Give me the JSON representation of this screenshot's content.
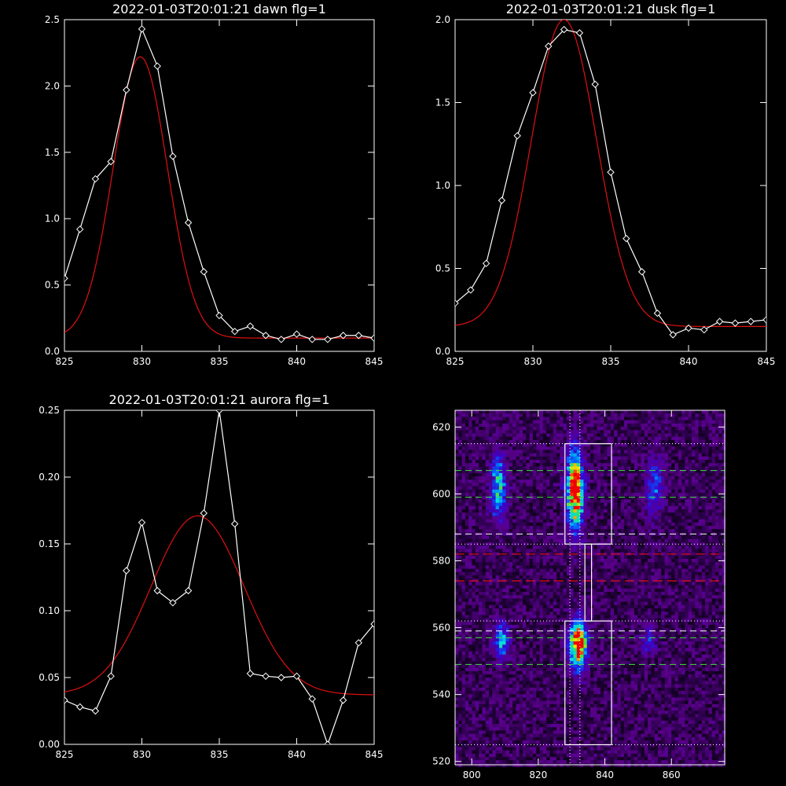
{
  "chart_data": [
    {
      "type": "line",
      "title": "2022-01-03T20:01:21 dawn flg=1",
      "xlim": [
        825,
        845
      ],
      "ylim": [
        0,
        2.5
      ],
      "xticks": [
        825,
        830,
        835,
        840,
        845
      ],
      "yticks": [
        0.0,
        0.5,
        1.0,
        1.5,
        2.0,
        2.5
      ],
      "ytick_labels": [
        "0.0",
        "0.5",
        "1.0",
        "1.5",
        "2.0",
        "2.5"
      ],
      "series": [
        {
          "color": "#ffffff",
          "markers": "diamond",
          "x": [
            825,
            826,
            827,
            828,
            829,
            830,
            831,
            832,
            833,
            834,
            835,
            836,
            837,
            838,
            839,
            840,
            841,
            842,
            843,
            844,
            845
          ],
          "y": [
            0.55,
            0.92,
            1.3,
            1.43,
            1.97,
            2.43,
            2.15,
            1.47,
            0.97,
            0.6,
            0.27,
            0.15,
            0.19,
            0.12,
            0.09,
            0.13,
            0.09,
            0.09,
            0.12,
            0.12,
            0.1
          ]
        },
        {
          "color": "#e01010",
          "fit": "gaussian",
          "amplitude": 2.12,
          "center": 829.9,
          "sigma": 1.75,
          "offset": 0.1,
          "x_start": 825,
          "x_end": 845
        }
      ]
    },
    {
      "type": "line",
      "title": "2022-01-03T20:01:21 dusk flg=1",
      "xlim": [
        825,
        845
      ],
      "ylim": [
        0,
        2.0
      ],
      "xticks": [
        825,
        830,
        835,
        840,
        845
      ],
      "yticks": [
        0.0,
        0.5,
        1.0,
        1.5,
        2.0
      ],
      "ytick_labels": [
        "0.0",
        "0.5",
        "1.0",
        "1.5",
        "2.0"
      ],
      "series": [
        {
          "color": "#ffffff",
          "markers": "diamond",
          "x": [
            825,
            826,
            827,
            828,
            829,
            830,
            831,
            832,
            833,
            834,
            835,
            836,
            837,
            838,
            839,
            840,
            841,
            842,
            843,
            844,
            845
          ],
          "y": [
            0.29,
            0.37,
            0.53,
            0.91,
            1.3,
            1.56,
            1.84,
            1.94,
            1.92,
            1.61,
            1.08,
            0.68,
            0.48,
            0.23,
            0.1,
            0.14,
            0.13,
            0.18,
            0.17,
            0.18,
            0.19
          ]
        },
        {
          "color": "#e01010",
          "fit": "gaussian",
          "amplitude": 1.85,
          "center": 832.0,
          "sigma": 2.1,
          "offset": 0.15,
          "x_start": 825,
          "x_end": 845
        }
      ]
    },
    {
      "type": "line",
      "title": "2022-01-03T20:01:21 aurora flg=1",
      "xlim": [
        825,
        845
      ],
      "ylim": [
        0,
        0.25
      ],
      "xticks": [
        825,
        830,
        835,
        840,
        845
      ],
      "yticks": [
        0.0,
        0.05,
        0.1,
        0.15,
        0.2,
        0.25
      ],
      "ytick_labels": [
        "0.00",
        "0.05",
        "0.10",
        "0.15",
        "0.20",
        "0.25"
      ],
      "series": [
        {
          "color": "#ffffff",
          "markers": "diamond",
          "x": [
            825,
            826,
            827,
            828,
            829,
            830,
            831,
            832,
            833,
            834,
            835,
            836,
            837,
            838,
            839,
            840,
            841,
            842,
            843,
            844,
            845
          ],
          "y": [
            0.033,
            0.028,
            0.025,
            0.051,
            0.13,
            0.166,
            0.115,
            0.106,
            0.115,
            0.173,
            0.25,
            0.165,
            0.053,
            0.051,
            0.05,
            0.051,
            0.034,
            0.0,
            0.033,
            0.076,
            0.09
          ]
        },
        {
          "color": "#e01010",
          "fit": "gaussian",
          "amplitude": 0.134,
          "center": 833.6,
          "sigma": 3.0,
          "offset": 0.037,
          "x_start": 825,
          "x_end": 845
        }
      ]
    },
    {
      "type": "heatmap",
      "colormap": "rainbow",
      "xlim": [
        795,
        876
      ],
      "ylim": [
        519,
        625
      ],
      "xticks": [
        800,
        820,
        840,
        860
      ],
      "yticks": [
        520,
        540,
        560,
        580,
        600,
        620
      ],
      "emission_blobs": [
        {
          "x": 808,
          "y": 602,
          "sx": 1.6,
          "sy": 7,
          "peak": 0.55
        },
        {
          "x": 831,
          "y": 601,
          "sx": 1.8,
          "sy": 8,
          "peak": 1.0
        },
        {
          "x": 855,
          "y": 602,
          "sx": 1.8,
          "sy": 6,
          "peak": 0.35
        },
        {
          "x": 809,
          "y": 556,
          "sx": 1.6,
          "sy": 4,
          "peak": 0.45
        },
        {
          "x": 832,
          "y": 555,
          "sx": 1.8,
          "sy": 5,
          "peak": 1.0
        },
        {
          "x": 853,
          "y": 556,
          "sx": 1.6,
          "sy": 3,
          "peak": 0.25
        }
      ],
      "boxes": [
        {
          "x": [
            828,
            842
          ],
          "y": [
            585,
            615
          ]
        },
        {
          "x": [
            828,
            842
          ],
          "y": [
            525,
            562
          ]
        },
        {
          "x": [
            834,
            836
          ],
          "y": [
            562,
            585
          ]
        }
      ],
      "vlines_dotted": [
        829.5,
        832.5
      ],
      "hlines_dotted": [
        615,
        585,
        562,
        525
      ],
      "hlines_green_dashed": [
        607,
        599,
        557,
        549
      ],
      "hlines_white_dashed": [
        588,
        559
      ],
      "hlines_red_dashed": [
        582,
        574
      ]
    }
  ]
}
